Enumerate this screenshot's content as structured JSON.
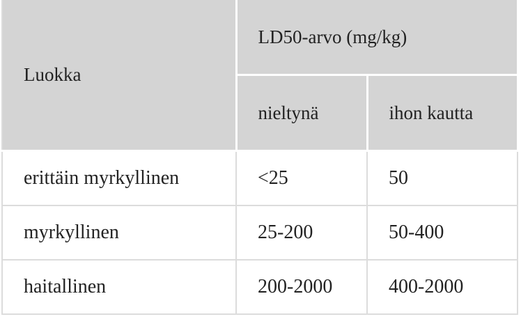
{
  "table": {
    "header": {
      "category": "Luokka",
      "group": "LD50-arvo (mg/kg)",
      "subheaders": [
        "nieltynä",
        "ihon kautta"
      ]
    },
    "rows": [
      [
        "erittäin myrkyllinen",
        "<25",
        "50"
      ],
      [
        "myrkyllinen",
        "25-200",
        "50-400"
      ],
      [
        "haitallinen",
        "200-2000",
        "400-2000"
      ]
    ]
  }
}
